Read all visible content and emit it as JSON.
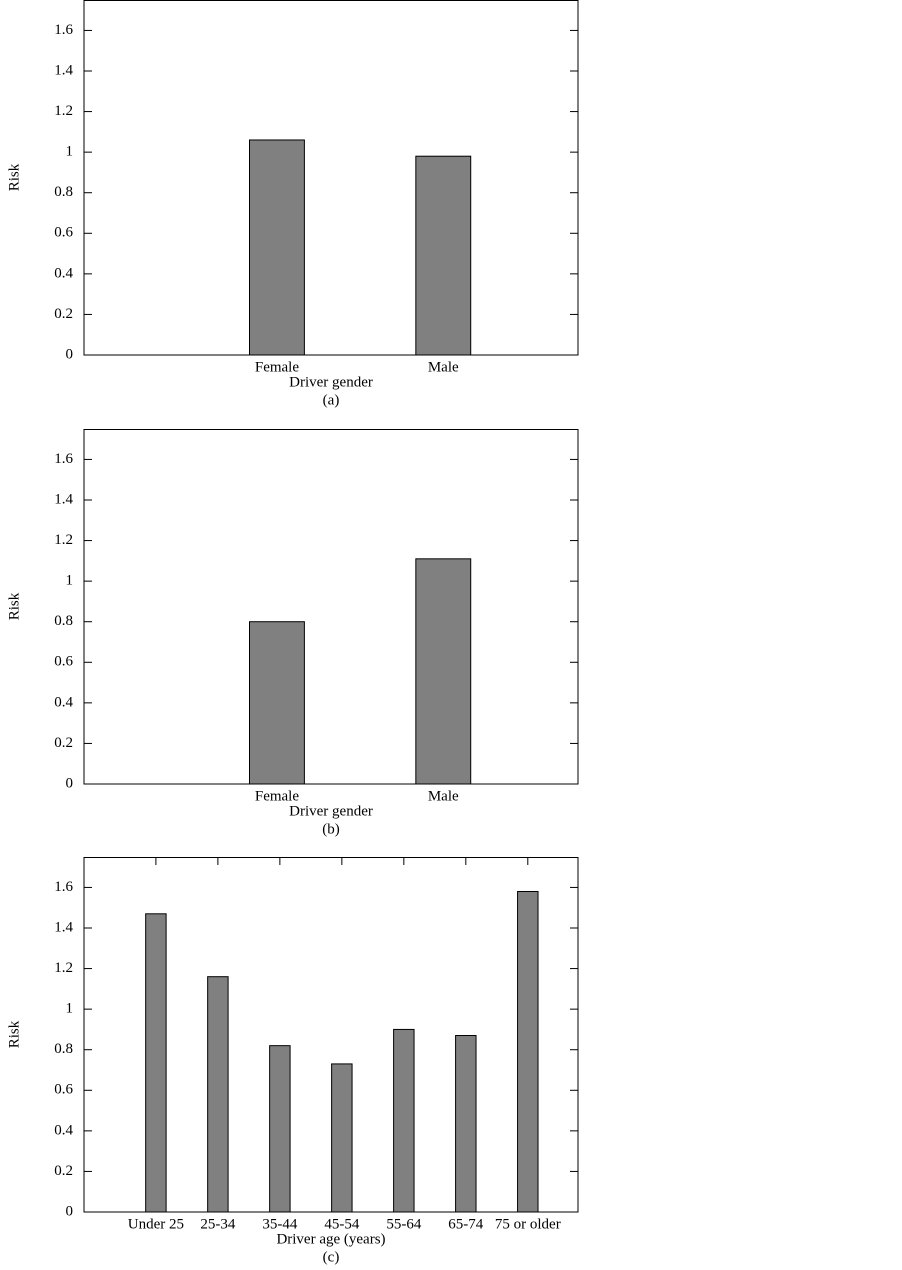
{
  "chart_data": [
    {
      "type": "bar",
      "y_label": "Risk",
      "x_label": "Driver gender",
      "caption": "(a)",
      "categories": [
        "Female",
        "Male"
      ],
      "values": [
        1.06,
        0.98
      ],
      "color": "#808080",
      "ylim": [
        0,
        1.75
      ],
      "yticks": [
        0,
        0.2,
        0.4,
        0.6,
        0.8,
        1,
        1.2,
        1.4,
        1.6
      ]
    },
    {
      "type": "bar",
      "y_label": "Risk",
      "x_label": "Driver gender",
      "caption": "(b)",
      "categories": [
        "Female",
        "Male"
      ],
      "values": [
        0.8,
        1.11
      ],
      "color": "#808080",
      "ylim": [
        0,
        1.75
      ],
      "yticks": [
        0,
        0.2,
        0.4,
        0.6,
        0.8,
        1,
        1.2,
        1.4,
        1.6
      ]
    },
    {
      "type": "bar",
      "y_label": "Risk",
      "x_label": "Driver age (years)",
      "caption": "(c)",
      "categories": [
        "Under 25",
        "25-34",
        "35-44",
        "45-54",
        "55-64",
        "65-74",
        "75 or older"
      ],
      "values": [
        1.47,
        1.16,
        0.82,
        0.73,
        0.9,
        0.87,
        1.58
      ],
      "color": "#808080",
      "ylim": [
        0,
        1.75
      ],
      "yticks": [
        0,
        0.2,
        0.4,
        0.6,
        0.8,
        1,
        1.2,
        1.4,
        1.6
      ]
    }
  ]
}
